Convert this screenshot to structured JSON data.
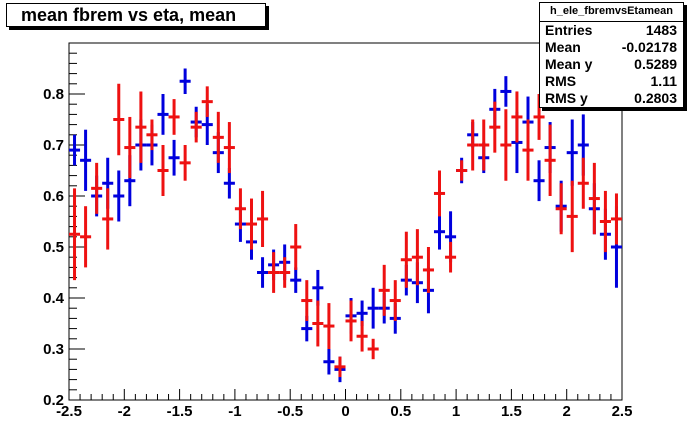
{
  "title": "mean fbrem vs eta, mean",
  "stats": {
    "name": "h_ele_fbremvsEtamean",
    "rows": [
      {
        "label": "Entries",
        "value": "1483"
      },
      {
        "label": "Mean",
        "value": "-0.02178"
      },
      {
        "label": "Mean y",
        "value": "0.5289"
      },
      {
        "label": "RMS",
        "value": "1.11"
      },
      {
        "label": "RMS y",
        "value": "0.2803"
      }
    ]
  },
  "chart_data": {
    "type": "scatter",
    "title": "mean fbrem vs eta, mean",
    "xlabel": "",
    "ylabel": "",
    "xlim": [
      -2.5,
      2.5
    ],
    "ylim": [
      0.2,
      0.9
    ],
    "x_ticks": [
      "-2.5",
      "-2",
      "-1.5",
      "-1",
      "-0.5",
      "0",
      "0.5",
      "1",
      "1.5",
      "2",
      "2.5"
    ],
    "y_ticks": [
      "0.2",
      "0.3",
      "0.4",
      "0.5",
      "0.6",
      "0.7",
      "0.8"
    ],
    "grid": false,
    "colors": {
      "blue": "#0000dd",
      "red": "#ee1111"
    },
    "series": [
      {
        "color": "blue",
        "points": [
          [
            -2.45,
            0.69,
            0.03
          ],
          [
            -2.35,
            0.67,
            0.06
          ],
          [
            -2.25,
            0.6,
            0.04
          ],
          [
            -2.15,
            0.625,
            0.05
          ],
          [
            -2.05,
            0.6,
            0.05
          ],
          [
            -1.95,
            0.63,
            0.05
          ],
          [
            -1.85,
            0.7,
            0.05
          ],
          [
            -1.75,
            0.7,
            0.04
          ],
          [
            -1.65,
            0.76,
            0.04
          ],
          [
            -1.55,
            0.675,
            0.035
          ],
          [
            -1.45,
            0.825,
            0.025
          ],
          [
            -1.35,
            0.745,
            0.03
          ],
          [
            -1.25,
            0.74,
            0.04
          ],
          [
            -1.15,
            0.685,
            0.04
          ],
          [
            -1.05,
            0.625,
            0.03
          ],
          [
            -0.95,
            0.545,
            0.035
          ],
          [
            -0.85,
            0.51,
            0.035
          ],
          [
            -0.75,
            0.45,
            0.03
          ],
          [
            -0.65,
            0.465,
            0.03
          ],
          [
            -0.55,
            0.47,
            0.035
          ],
          [
            -0.45,
            0.435,
            0.025
          ],
          [
            -0.35,
            0.34,
            0.025
          ],
          [
            -0.25,
            0.42,
            0.035
          ],
          [
            -0.15,
            0.275,
            0.025
          ],
          [
            -0.05,
            0.26,
            0.025
          ],
          [
            0.05,
            0.365,
            0.035
          ],
          [
            0.15,
            0.37,
            0.025
          ],
          [
            0.25,
            0.38,
            0.04
          ],
          [
            0.35,
            0.38,
            0.03
          ],
          [
            0.45,
            0.36,
            0.03
          ],
          [
            0.55,
            0.435,
            0.03
          ],
          [
            0.65,
            0.43,
            0.04
          ],
          [
            0.75,
            0.415,
            0.045
          ],
          [
            0.85,
            0.53,
            0.035
          ],
          [
            0.95,
            0.52,
            0.05
          ],
          [
            1.05,
            0.65,
            0.025
          ],
          [
            1.15,
            0.72,
            0.025
          ],
          [
            1.25,
            0.675,
            0.03
          ],
          [
            1.35,
            0.77,
            0.04
          ],
          [
            1.45,
            0.805,
            0.03
          ],
          [
            1.55,
            0.705,
            0.06
          ],
          [
            1.65,
            0.745,
            0.05
          ],
          [
            1.75,
            0.63,
            0.04
          ],
          [
            1.85,
            0.695,
            0.05
          ],
          [
            1.95,
            0.58,
            0.05
          ],
          [
            2.05,
            0.685,
            0.065
          ],
          [
            2.15,
            0.7,
            0.06
          ],
          [
            2.25,
            0.575,
            0.05
          ],
          [
            2.35,
            0.525,
            0.05
          ],
          [
            2.45,
            0.5,
            0.08
          ]
        ]
      },
      {
        "color": "red",
        "points": [
          [
            -2.45,
            0.525,
            0.09
          ],
          [
            -2.35,
            0.52,
            0.06
          ],
          [
            -2.25,
            0.615,
            0.05
          ],
          [
            -2.15,
            0.555,
            0.06
          ],
          [
            -2.05,
            0.75,
            0.07
          ],
          [
            -1.95,
            0.695,
            0.06
          ],
          [
            -1.85,
            0.735,
            0.07
          ],
          [
            -1.75,
            0.72,
            0.03
          ],
          [
            -1.65,
            0.65,
            0.05
          ],
          [
            -1.55,
            0.755,
            0.035
          ],
          [
            -1.45,
            0.665,
            0.035
          ],
          [
            -1.35,
            0.735,
            0.03
          ],
          [
            -1.25,
            0.785,
            0.03
          ],
          [
            -1.15,
            0.715,
            0.05
          ],
          [
            -1.05,
            0.695,
            0.05
          ],
          [
            -0.95,
            0.575,
            0.04
          ],
          [
            -0.85,
            0.545,
            0.05
          ],
          [
            -0.75,
            0.555,
            0.055
          ],
          [
            -0.65,
            0.45,
            0.04
          ],
          [
            -0.55,
            0.45,
            0.03
          ],
          [
            -0.45,
            0.5,
            0.045
          ],
          [
            -0.35,
            0.395,
            0.04
          ],
          [
            -0.25,
            0.35,
            0.045
          ],
          [
            -0.15,
            0.345,
            0.045
          ],
          [
            -0.05,
            0.265,
            0.02
          ],
          [
            0.05,
            0.355,
            0.04
          ],
          [
            0.15,
            0.325,
            0.03
          ],
          [
            0.25,
            0.3,
            0.02
          ],
          [
            0.35,
            0.415,
            0.05
          ],
          [
            0.45,
            0.395,
            0.04
          ],
          [
            0.55,
            0.475,
            0.055
          ],
          [
            0.65,
            0.48,
            0.055
          ],
          [
            0.75,
            0.455,
            0.045
          ],
          [
            0.85,
            0.605,
            0.045
          ],
          [
            0.95,
            0.48,
            0.03
          ],
          [
            1.05,
            0.65,
            0.02
          ],
          [
            1.15,
            0.7,
            0.05
          ],
          [
            1.25,
            0.7,
            0.05
          ],
          [
            1.35,
            0.735,
            0.05
          ],
          [
            1.45,
            0.7,
            0.07
          ],
          [
            1.55,
            0.755,
            0.05
          ],
          [
            1.65,
            0.69,
            0.06
          ],
          [
            1.75,
            0.755,
            0.045
          ],
          [
            1.85,
            0.67,
            0.07
          ],
          [
            1.95,
            0.575,
            0.05
          ],
          [
            2.05,
            0.56,
            0.07
          ],
          [
            2.15,
            0.625,
            0.05
          ],
          [
            2.25,
            0.595,
            0.07
          ],
          [
            2.35,
            0.55,
            0.06
          ],
          [
            2.45,
            0.555,
            0.05
          ]
        ]
      }
    ]
  }
}
